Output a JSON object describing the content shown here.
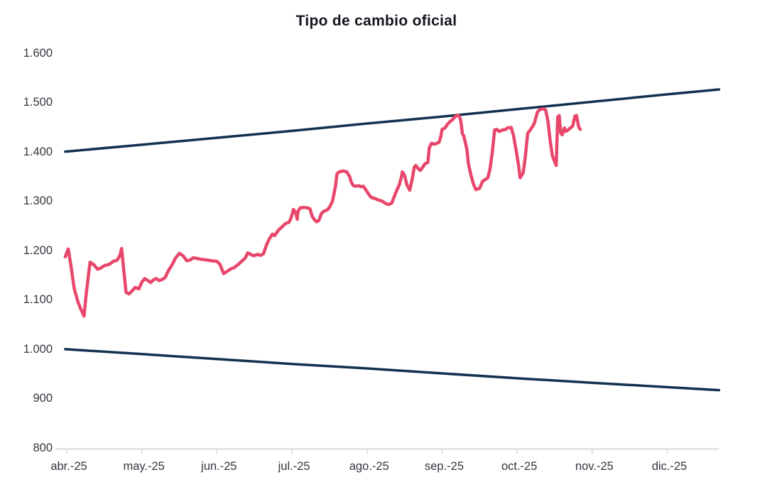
{
  "chart_data": {
    "type": "line",
    "title": "Tipo de cambio oficial",
    "xlabel": "",
    "ylabel": "",
    "grid": false,
    "legend": "none",
    "ylim": [
      800,
      1600
    ],
    "xlim_months": [
      -0.15,
      8.69
    ],
    "y_ticks": [
      {
        "v": 800,
        "label": "800"
      },
      {
        "v": 900,
        "label": "900"
      },
      {
        "v": 1000,
        "label": "1.000"
      },
      {
        "v": 1100,
        "label": "1.100"
      },
      {
        "v": 1200,
        "label": "1.200"
      },
      {
        "v": 1300,
        "label": "1.300"
      },
      {
        "v": 1400,
        "label": "1.400"
      },
      {
        "v": 1500,
        "label": "1.500"
      },
      {
        "v": 1600,
        "label": "1.600"
      }
    ],
    "x_ticks": [
      {
        "m": 0,
        "label": "abr.-25"
      },
      {
        "m": 1,
        "label": "may.-25"
      },
      {
        "m": 2,
        "label": "jun.-25"
      },
      {
        "m": 3,
        "label": "jul.-25"
      },
      {
        "m": 4,
        "label": "ago.-25"
      },
      {
        "m": 5,
        "label": "sep.-25"
      },
      {
        "m": 6,
        "label": "oct.-25"
      },
      {
        "m": 7,
        "label": "nov.-25"
      },
      {
        "m": 8,
        "label": "dic.-25"
      }
    ],
    "colors": {
      "main_line": "#e8476b",
      "band_lines": "#12304f",
      "axis": "#d8d8d8",
      "labels": "#35353f",
      "title": "#15151f"
    },
    "series": [
      {
        "name": "upper-band",
        "color": "#12304f",
        "width": 3.5,
        "points": [
          [
            -0.02,
            1400
          ],
          [
            1,
            1414
          ],
          [
            2,
            1428
          ],
          [
            3,
            1442
          ],
          [
            4,
            1457
          ],
          [
            5,
            1471
          ],
          [
            6,
            1486
          ],
          [
            7,
            1501
          ],
          [
            8,
            1516
          ],
          [
            8.69,
            1526
          ]
        ]
      },
      {
        "name": "lower-band",
        "color": "#12304f",
        "width": 3.5,
        "points": [
          [
            -0.02,
            1000
          ],
          [
            1,
            990
          ],
          [
            2,
            980
          ],
          [
            3,
            970
          ],
          [
            4,
            961
          ],
          [
            5,
            951
          ],
          [
            6,
            941
          ],
          [
            7,
            932
          ],
          [
            8,
            923
          ],
          [
            8.69,
            917
          ]
        ]
      },
      {
        "name": "tipo-de-cambio-oficial",
        "color": "#e8476b",
        "width": 4.5,
        "points": [
          [
            -0.02,
            1187
          ],
          [
            0.02,
            1203
          ],
          [
            0.06,
            1165
          ],
          [
            0.1,
            1122
          ],
          [
            0.15,
            1095
          ],
          [
            0.19,
            1080
          ],
          [
            0.23,
            1067
          ],
          [
            0.26,
            1113
          ],
          [
            0.31,
            1176
          ],
          [
            0.36,
            1171
          ],
          [
            0.41,
            1162
          ],
          [
            0.45,
            1164
          ],
          [
            0.5,
            1169
          ],
          [
            0.57,
            1172
          ],
          [
            0.62,
            1178
          ],
          [
            0.67,
            1180
          ],
          [
            0.71,
            1190
          ],
          [
            0.73,
            1204
          ],
          [
            0.76,
            1160
          ],
          [
            0.79,
            1115
          ],
          [
            0.83,
            1112
          ],
          [
            0.87,
            1118
          ],
          [
            0.91,
            1125
          ],
          [
            0.96,
            1122
          ],
          [
            1.0,
            1136
          ],
          [
            1.04,
            1143
          ],
          [
            1.08,
            1139
          ],
          [
            1.12,
            1135
          ],
          [
            1.15,
            1140
          ],
          [
            1.19,
            1143
          ],
          [
            1.23,
            1139
          ],
          [
            1.27,
            1141
          ],
          [
            1.31,
            1145
          ],
          [
            1.35,
            1158
          ],
          [
            1.4,
            1170
          ],
          [
            1.45,
            1185
          ],
          [
            1.5,
            1194
          ],
          [
            1.55,
            1189
          ],
          [
            1.6,
            1179
          ],
          [
            1.65,
            1181
          ],
          [
            1.68,
            1185
          ],
          [
            1.73,
            1184
          ],
          [
            1.79,
            1182
          ],
          [
            1.85,
            1181
          ],
          [
            1.93,
            1179
          ],
          [
            2.0,
            1178
          ],
          [
            2.04,
            1172
          ],
          [
            2.09,
            1153
          ],
          [
            2.14,
            1158
          ],
          [
            2.19,
            1163
          ],
          [
            2.23,
            1165
          ],
          [
            2.28,
            1171
          ],
          [
            2.33,
            1178
          ],
          [
            2.38,
            1185
          ],
          [
            2.41,
            1195
          ],
          [
            2.45,
            1192
          ],
          [
            2.49,
            1189
          ],
          [
            2.54,
            1192
          ],
          [
            2.58,
            1190
          ],
          [
            2.62,
            1193
          ],
          [
            2.66,
            1211
          ],
          [
            2.7,
            1224
          ],
          [
            2.74,
            1233
          ],
          [
            2.77,
            1230
          ],
          [
            2.82,
            1241
          ],
          [
            2.87,
            1248
          ],
          [
            2.91,
            1254
          ],
          [
            2.96,
            1257
          ],
          [
            2.99,
            1266
          ],
          [
            3.02,
            1283
          ],
          [
            3.05,
            1276
          ],
          [
            3.07,
            1263
          ],
          [
            3.08,
            1279
          ],
          [
            3.11,
            1286
          ],
          [
            3.16,
            1287
          ],
          [
            3.21,
            1286
          ],
          [
            3.24,
            1284
          ],
          [
            3.27,
            1269
          ],
          [
            3.3,
            1262
          ],
          [
            3.33,
            1258
          ],
          [
            3.36,
            1261
          ],
          [
            3.39,
            1274
          ],
          [
            3.42,
            1279
          ],
          [
            3.44,
            1280
          ],
          [
            3.48,
            1283
          ],
          [
            3.51,
            1290
          ],
          [
            3.54,
            1300
          ],
          [
            3.58,
            1330
          ],
          [
            3.6,
            1355
          ],
          [
            3.63,
            1359
          ],
          [
            3.68,
            1361
          ],
          [
            3.73,
            1359
          ],
          [
            3.77,
            1349
          ],
          [
            3.79,
            1338
          ],
          [
            3.82,
            1331
          ],
          [
            3.86,
            1330
          ],
          [
            3.89,
            1331
          ],
          [
            3.92,
            1329
          ],
          [
            3.95,
            1330
          ],
          [
            3.97,
            1326
          ],
          [
            4.0,
            1319
          ],
          [
            4.03,
            1312
          ],
          [
            4.06,
            1307
          ],
          [
            4.11,
            1305
          ],
          [
            4.15,
            1302
          ],
          [
            4.2,
            1300
          ],
          [
            4.25,
            1295
          ],
          [
            4.29,
            1293
          ],
          [
            4.33,
            1296
          ],
          [
            4.38,
            1316
          ],
          [
            4.43,
            1333
          ],
          [
            4.46,
            1350
          ],
          [
            4.47,
            1359
          ],
          [
            4.5,
            1352
          ],
          [
            4.53,
            1333
          ],
          [
            4.57,
            1322
          ],
          [
            4.6,
            1343
          ],
          [
            4.63,
            1369
          ],
          [
            4.65,
            1372
          ],
          [
            4.68,
            1366
          ],
          [
            4.71,
            1362
          ],
          [
            4.74,
            1368
          ],
          [
            4.77,
            1375
          ],
          [
            4.81,
            1378
          ],
          [
            4.83,
            1408
          ],
          [
            4.86,
            1417
          ],
          [
            4.9,
            1415
          ],
          [
            4.93,
            1417
          ],
          [
            4.96,
            1419
          ],
          [
            4.98,
            1429
          ],
          [
            5.0,
            1445
          ],
          [
            5.04,
            1448
          ],
          [
            5.07,
            1455
          ],
          [
            5.1,
            1460
          ],
          [
            5.14,
            1465
          ],
          [
            5.17,
            1470
          ],
          [
            5.2,
            1474
          ],
          [
            5.23,
            1472
          ],
          [
            5.25,
            1462
          ],
          [
            5.27,
            1437
          ],
          [
            5.29,
            1431
          ],
          [
            5.33,
            1405
          ],
          [
            5.35,
            1376
          ],
          [
            5.38,
            1355
          ],
          [
            5.42,
            1333
          ],
          [
            5.45,
            1323
          ],
          [
            5.5,
            1326
          ],
          [
            5.54,
            1340
          ],
          [
            5.57,
            1343
          ],
          [
            5.61,
            1347
          ],
          [
            5.64,
            1366
          ],
          [
            5.67,
            1400
          ],
          [
            5.7,
            1444
          ],
          [
            5.73,
            1445
          ],
          [
            5.76,
            1441
          ],
          [
            5.81,
            1444
          ],
          [
            5.85,
            1445
          ],
          [
            5.87,
            1448
          ],
          [
            5.92,
            1449
          ],
          [
            5.95,
            1434
          ],
          [
            5.99,
            1400
          ],
          [
            6.02,
            1371
          ],
          [
            6.04,
            1347
          ],
          [
            6.08,
            1357
          ],
          [
            6.11,
            1391
          ],
          [
            6.14,
            1437
          ],
          [
            6.18,
            1445
          ],
          [
            6.21,
            1452
          ],
          [
            6.23,
            1458
          ],
          [
            6.27,
            1480
          ],
          [
            6.3,
            1485
          ],
          [
            6.35,
            1487
          ],
          [
            6.38,
            1484
          ],
          [
            6.41,
            1462
          ],
          [
            6.44,
            1422
          ],
          [
            6.47,
            1391
          ],
          [
            6.52,
            1372
          ],
          [
            6.54,
            1470
          ],
          [
            6.56,
            1473
          ],
          [
            6.58,
            1438
          ],
          [
            6.6,
            1434
          ],
          [
            6.63,
            1448
          ],
          [
            6.65,
            1441
          ],
          [
            6.68,
            1444
          ],
          [
            6.71,
            1448
          ],
          [
            6.74,
            1452
          ],
          [
            6.77,
            1472
          ],
          [
            6.79,
            1473
          ],
          [
            6.82,
            1450
          ],
          [
            6.84,
            1445
          ]
        ]
      }
    ]
  }
}
